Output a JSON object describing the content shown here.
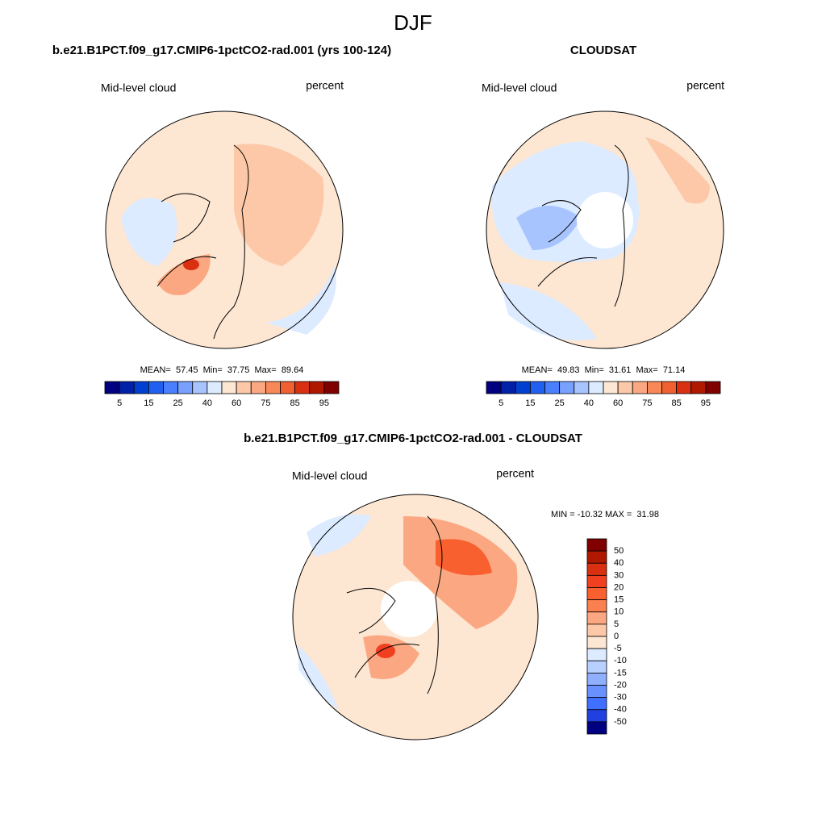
{
  "title": "DJF",
  "panels": [
    {
      "title": "b.e21.B1PCT.f09_g17.CMIP6-1pctCO2-rad.001 (yrs 100-124)",
      "left_label": "Mid-level cloud",
      "right_label": "percent",
      "stats": "MEAN=  57.45  Min=  37.75  Max=  89.64"
    },
    {
      "title": "CLOUDSAT",
      "left_label": "Mid-level cloud",
      "right_label": "percent",
      "stats": "MEAN=  49.83  Min=  31.61  Max=  71.14"
    },
    {
      "title": "b.e21.B1PCT.f09_g17.CMIP6-1pctCO2-rad.001 - CLOUDSAT",
      "left_label": "Mid-level cloud",
      "right_label": "percent",
      "stats": "MIN = -10.32 MAX =  31.98"
    }
  ],
  "colorbars": [
    {
      "colors": [
        "#000080",
        "#0020a8",
        "#0040d0",
        "#2060f0",
        "#4a80ff",
        "#78a0ff",
        "#a8c4ff",
        "#dcebff",
        "#fde6d2",
        "#fcc8a8",
        "#fba882",
        "#f88858",
        "#f06030",
        "#d83010",
        "#b01800",
        "#800000"
      ],
      "labels": [
        "5",
        "15",
        "25",
        "40",
        "60",
        "75",
        "85",
        "95"
      ]
    },
    {
      "colors": [
        "#000080",
        "#0020a8",
        "#0040d0",
        "#2060f0",
        "#4a80ff",
        "#78a0ff",
        "#a8c4ff",
        "#dcebff",
        "#fde6d2",
        "#fcc8a8",
        "#fba882",
        "#f88858",
        "#f06030",
        "#d83010",
        "#b01800",
        "#800000"
      ],
      "labels": [
        "5",
        "15",
        "25",
        "40",
        "60",
        "75",
        "85",
        "95"
      ]
    },
    {
      "colors": [
        "#800000",
        "#b01800",
        "#d83010",
        "#f04020",
        "#f86030",
        "#fa8050",
        "#fba882",
        "#fcc8a8",
        "#fde6d2",
        "#dcebff",
        "#b8d0ff",
        "#90b0ff",
        "#6890ff",
        "#4070ff",
        "#2040e0",
        "#000080"
      ],
      "labels": [
        "50",
        "40",
        "30",
        "20",
        "15",
        "10",
        "5",
        "0",
        "-5",
        "-10",
        "-15",
        "-20",
        "-30",
        "-40",
        "-50"
      ]
    }
  ]
}
